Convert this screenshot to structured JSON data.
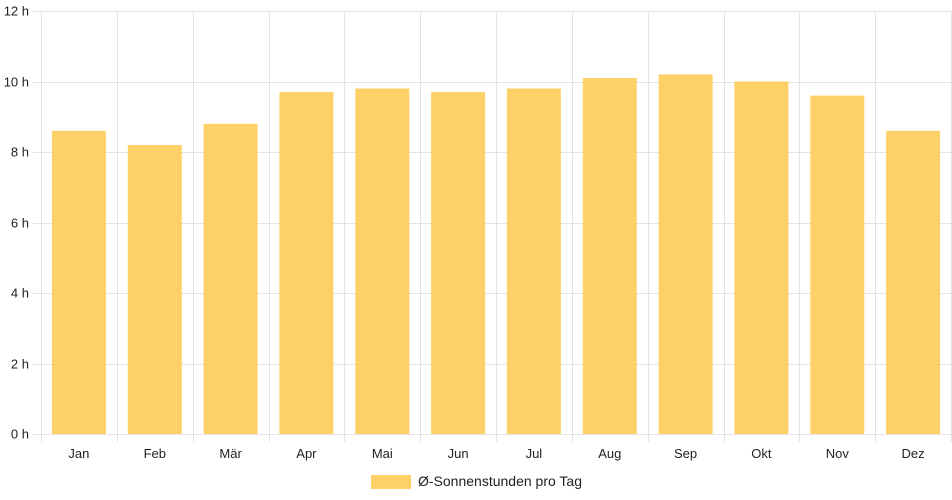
{
  "chart_data": {
    "type": "bar",
    "categories": [
      "Jan",
      "Feb",
      "Mär",
      "Apr",
      "Mai",
      "Jun",
      "Jul",
      "Aug",
      "Sep",
      "Okt",
      "Nov",
      "Dez"
    ],
    "series": [
      {
        "name": "Ø-Sonnenstunden pro Tag",
        "color": "#fdd068",
        "values": [
          8.6,
          8.2,
          8.8,
          9.7,
          9.8,
          9.7,
          9.8,
          10.1,
          10.2,
          10.0,
          9.6,
          8.6
        ]
      }
    ],
    "ylim": [
      0,
      12
    ],
    "yticks": [
      0,
      2,
      4,
      6,
      8,
      10,
      12
    ],
    "ytick_labels": [
      "0 h",
      "2 h",
      "4 h",
      "6 h",
      "8 h",
      "10 h",
      "12 h"
    ],
    "grid": true,
    "legend_position": "bottom-center",
    "grid_color": "#e4e4e4"
  }
}
